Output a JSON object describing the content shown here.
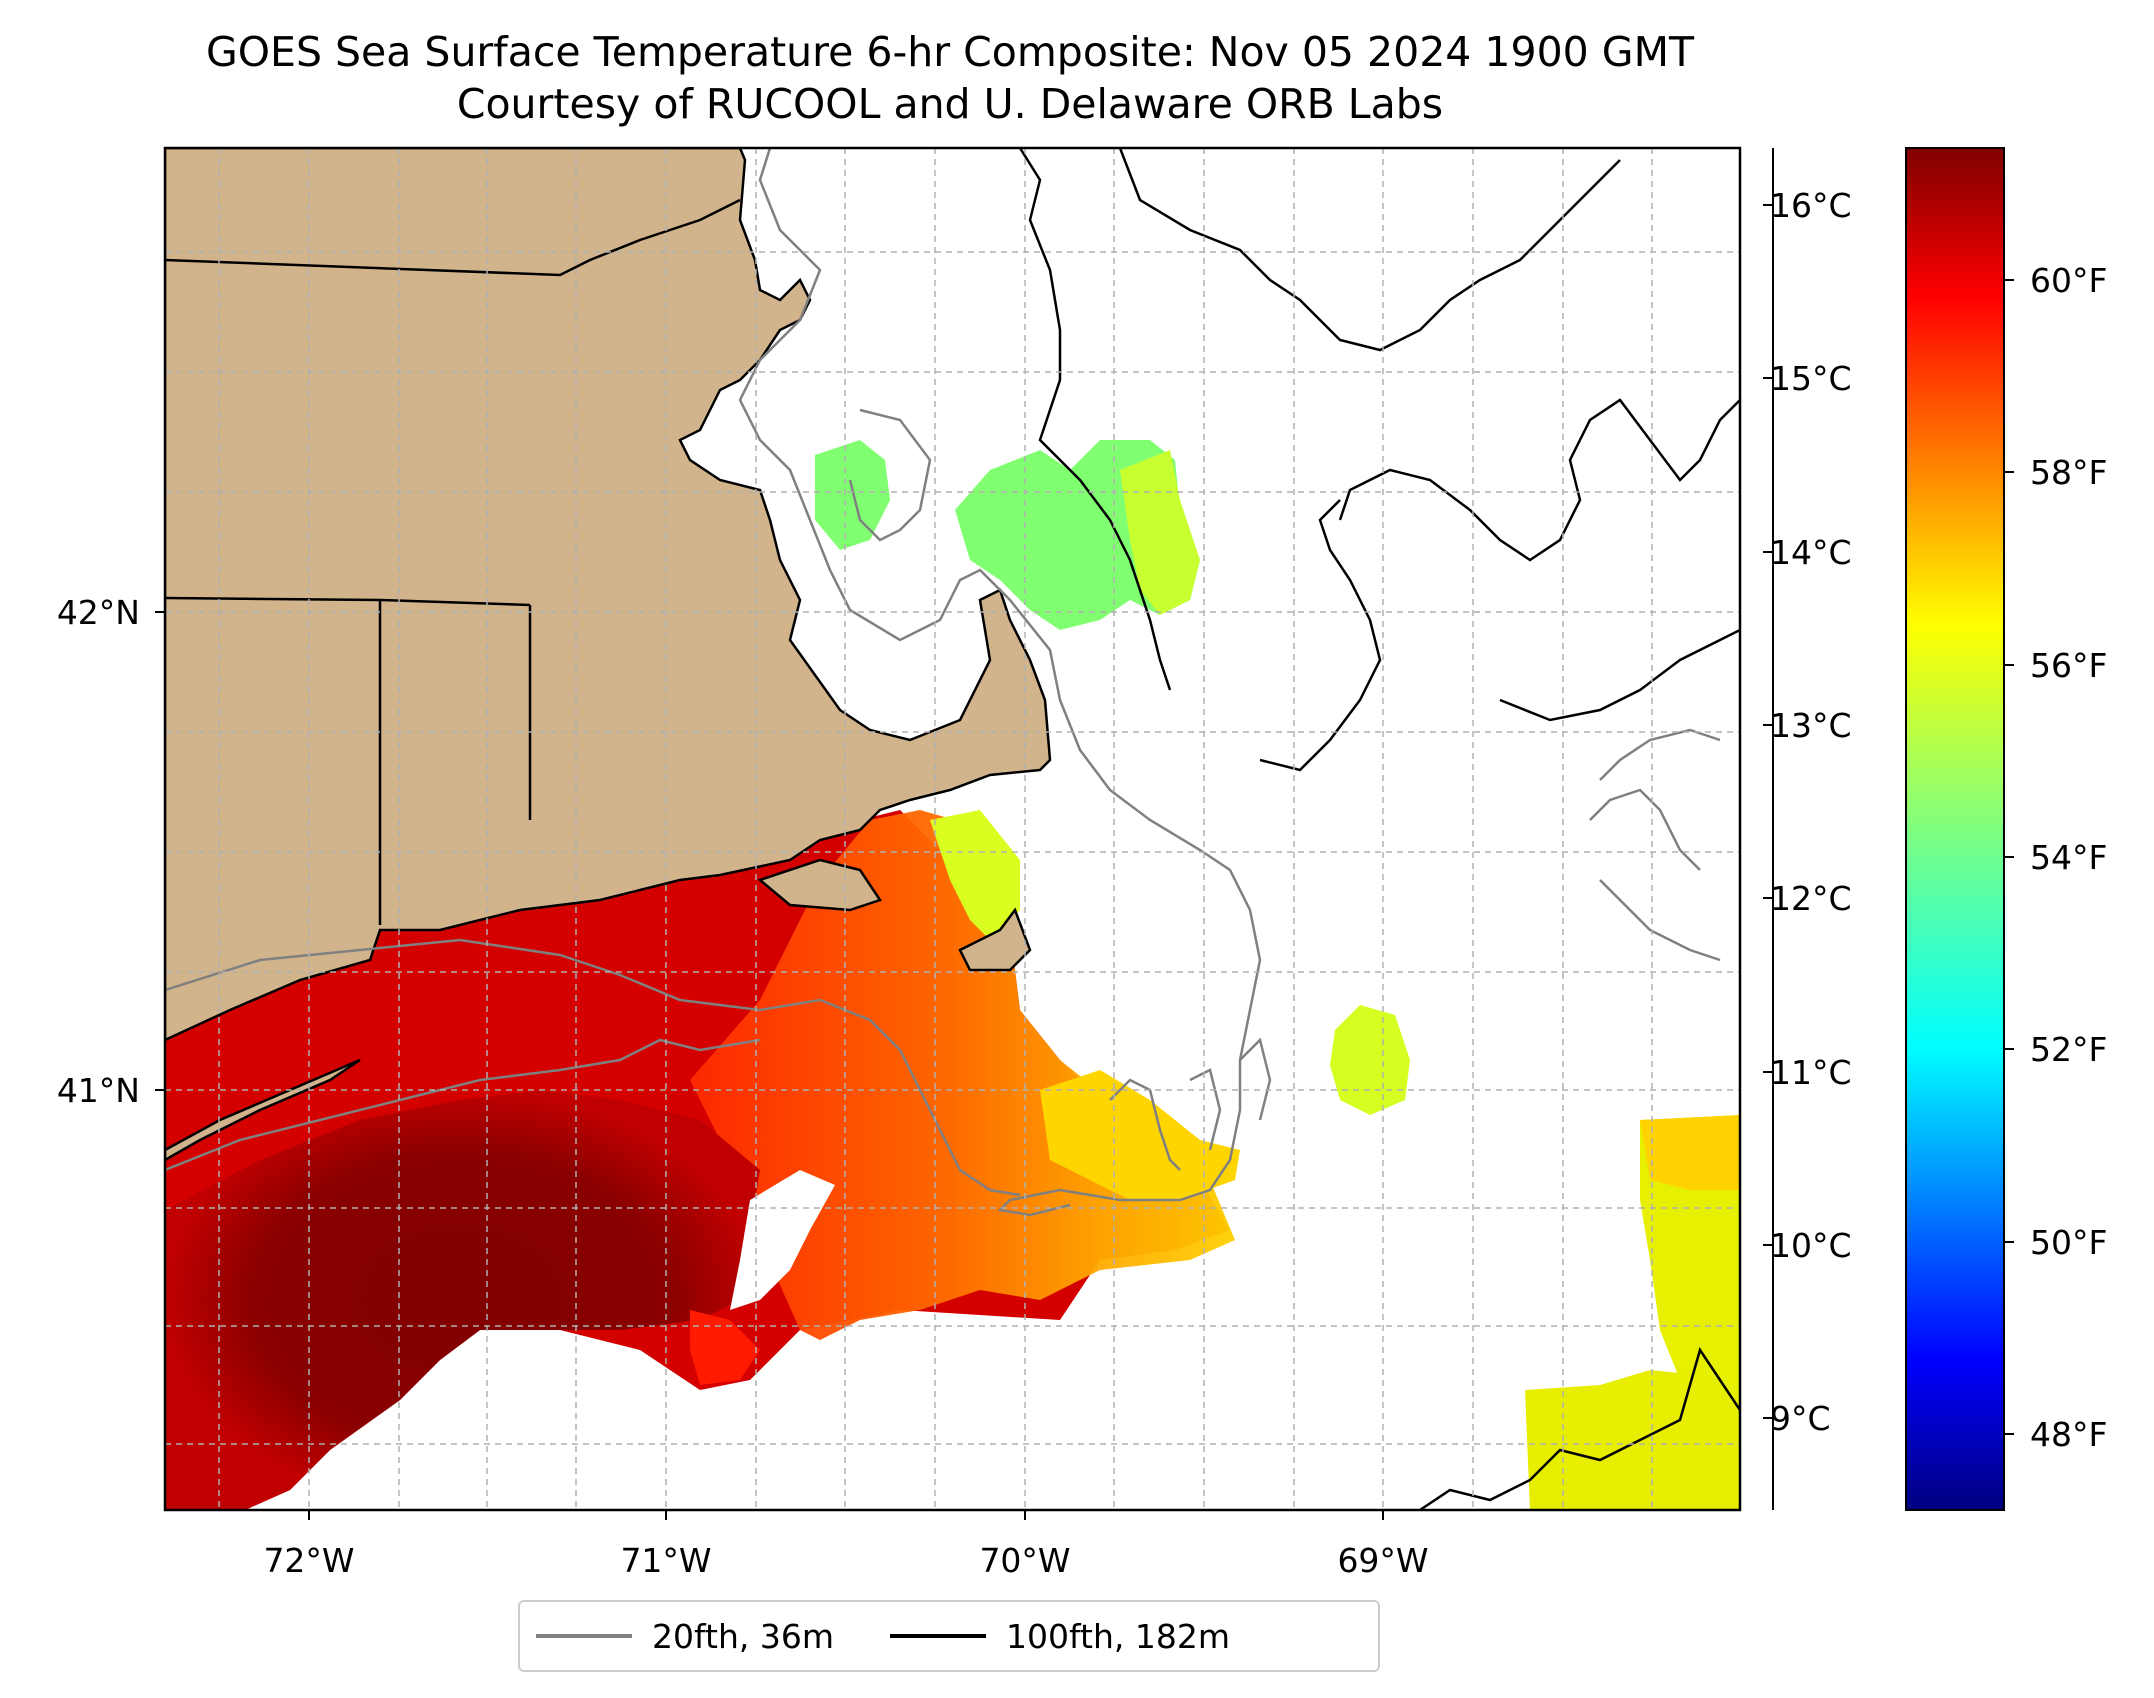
{
  "title": {
    "line1": "GOES Sea Surface Temperature 6-hr Composite: Nov 05 2024 1900 GMT",
    "line2": "Courtesy of RUCOOL and U. Delaware ORB Labs"
  },
  "map": {
    "longitude_ticks": [
      "72°W",
      "71°W",
      "70°W",
      "69°W"
    ],
    "latitude_ticks": [
      "42°N",
      "41°N"
    ],
    "colors": {
      "land": "#d2b48c",
      "ocean_nodata": "#ffffff",
      "isobath_20fth": "#808080",
      "isobath_100fth": "#000000",
      "gridline": "#b0b0b0"
    }
  },
  "colorbar": {
    "celsius_ticks": [
      "16°C",
      "15°C",
      "14°C",
      "13°C",
      "12°C",
      "11°C",
      "10°C",
      "9°C"
    ],
    "fahrenheit_ticks": [
      "60°F",
      "58°F",
      "56°F",
      "54°F",
      "52°F",
      "50°F",
      "48°F"
    ],
    "colormap": "jet",
    "range_c": [
      8.5,
      16.3
    ]
  },
  "legend": {
    "items": [
      {
        "label": "20fth, 36m",
        "color": "#808080"
      },
      {
        "label": "100fth, 182m",
        "color": "#000000"
      }
    ]
  }
}
